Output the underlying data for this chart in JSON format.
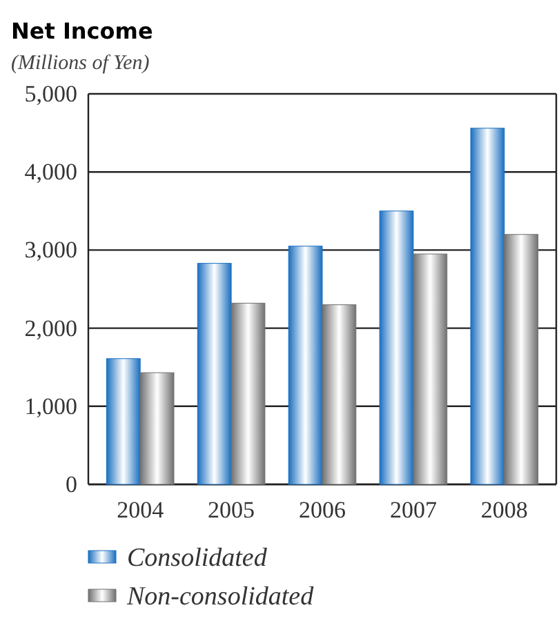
{
  "chart_data": {
    "type": "bar",
    "title": "Net Income",
    "subtitle": "(Millions of Yen)",
    "categories": [
      "2004",
      "2005",
      "2006",
      "2007",
      "2008"
    ],
    "series": [
      {
        "name": "Consolidated",
        "color": "#1a6fc0",
        "values": [
          1610,
          2830,
          3050,
          3500,
          4560
        ]
      },
      {
        "name": "Non-consolidated",
        "color": "#707070",
        "values": [
          1430,
          2320,
          2300,
          2950,
          3200
        ]
      }
    ],
    "ylim": [
      0,
      5000
    ],
    "yticks": [
      {
        "value": 0,
        "label": "0"
      },
      {
        "value": 1000,
        "label": "1,000"
      },
      {
        "value": 2000,
        "label": "2,000"
      },
      {
        "value": 3000,
        "label": "3,000"
      },
      {
        "value": 4000,
        "label": "4,000"
      },
      {
        "value": 5000,
        "label": "5,000"
      }
    ],
    "grid": "y",
    "legend": "bottom"
  }
}
